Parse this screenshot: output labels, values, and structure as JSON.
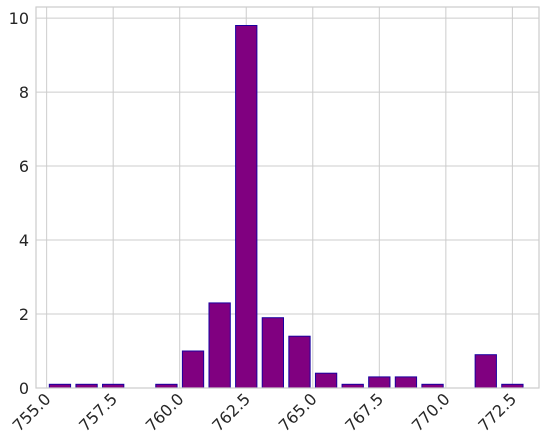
{
  "chart_data": {
    "type": "bar",
    "title": "",
    "xlabel": "",
    "ylabel": "",
    "x": [
      755.5,
      756.5,
      757.5,
      759.5,
      760.5,
      761.5,
      762.5,
      763.5,
      764.5,
      765.5,
      766.5,
      767.5,
      768.5,
      769.5,
      771.5,
      772.5
    ],
    "values": [
      0.1,
      0.1,
      0.1,
      0.1,
      1.0,
      2.3,
      9.8,
      1.9,
      1.4,
      0.4,
      0.1,
      0.3,
      0.3,
      0.1,
      0.9,
      0.1
    ],
    "xlim": [
      754.6,
      773.5
    ],
    "ylim": [
      0,
      10.3
    ],
    "xticks": [
      755.0,
      757.5,
      760.0,
      762.5,
      765.0,
      767.5,
      770.0,
      772.5
    ],
    "xtick_labels": [
      "755.0",
      "757.5",
      "760.0",
      "762.5",
      "765.0",
      "767.5",
      "770.0",
      "772.5"
    ],
    "yticks": [
      0,
      2,
      4,
      6,
      8,
      10
    ],
    "ytick_labels": [
      "0",
      "2",
      "4",
      "6",
      "8",
      "10"
    ],
    "bar_width": 0.8,
    "grid": true,
    "bar_color": "#800080",
    "edge_color": "#1a00a0"
  }
}
